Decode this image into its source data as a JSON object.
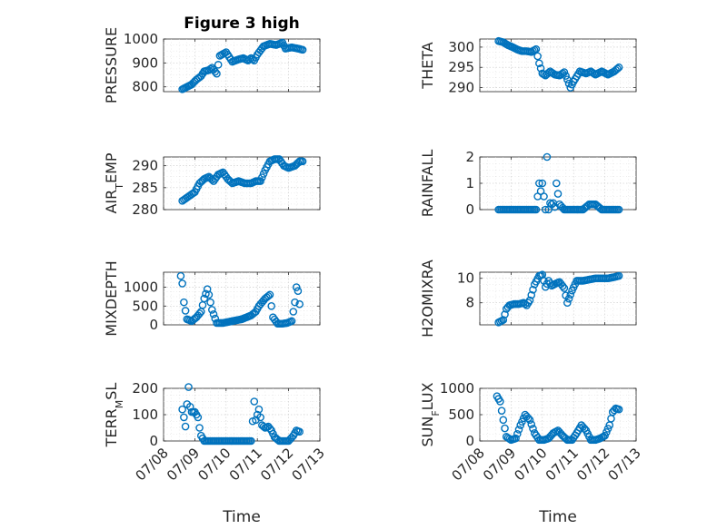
{
  "colors": {
    "series": "#0072bd",
    "axis": "#262626",
    "grid": "#c8c8c8"
  },
  "chart_data": [
    {
      "type": "scatter",
      "title": "Figure 3 high",
      "ylabel": "PRESSURE",
      "xlim": [
        "07/08",
        "07/13"
      ],
      "ylim": [
        780,
        1000
      ],
      "yticks": [
        800,
        900,
        1000
      ],
      "xticks": [],
      "grid": true,
      "markers": "open-circle",
      "series": [
        {
          "x": [
            8.6,
            8.9,
            9.05,
            9.2,
            9.3,
            9.45,
            9.55,
            9.7,
            9.8,
            10.0,
            10.2,
            10.4,
            10.55,
            10.7,
            10.8,
            10.9,
            11.0,
            11.2,
            11.4,
            11.6,
            11.8,
            11.9,
            12.1,
            12.3,
            12.45
          ],
          "values": [
            790,
            810,
            830,
            845,
            865,
            870,
            880,
            855,
            930,
            945,
            905,
            915,
            920,
            910,
            920,
            910,
            935,
            970,
            980,
            975,
            985,
            960,
            965,
            960,
            955
          ]
        }
      ]
    },
    {
      "type": "scatter",
      "title": "",
      "ylabel": "THETA",
      "xlim": [
        "07/08",
        "07/13"
      ],
      "ylim": [
        289,
        302
      ],
      "yticks": [
        290,
        295,
        300
      ],
      "xticks": [],
      "grid": true,
      "markers": "open-circle",
      "series": [
        {
          "x": [
            8.6,
            8.75,
            8.9,
            9.05,
            9.2,
            9.35,
            9.5,
            9.65,
            9.8,
            9.9,
            10.0,
            10.1,
            10.25,
            10.4,
            10.55,
            10.7,
            10.8,
            10.9,
            11.0,
            11.2,
            11.4,
            11.55,
            11.7,
            11.9,
            12.1,
            12.3,
            12.45
          ],
          "values": [
            301.5,
            301.2,
            300.5,
            300.0,
            299.4,
            299.0,
            299.0,
            298.8,
            299.5,
            296.0,
            293.5,
            293.0,
            294.0,
            293.2,
            293.0,
            293.8,
            292.0,
            290.0,
            291.5,
            294.0,
            293.5,
            294.0,
            293.2,
            294.0,
            293.2,
            294.0,
            295.0
          ]
        }
      ]
    },
    {
      "type": "scatter",
      "title": "",
      "ylabel": "AIR_TEMP",
      "xlim": [
        "07/08",
        "07/13"
      ],
      "ylim": [
        280,
        292
      ],
      "yticks": [
        280,
        285,
        290
      ],
      "xticks": [],
      "grid": true,
      "markers": "open-circle",
      "series": [
        {
          "x": [
            8.6,
            8.8,
            9.0,
            9.15,
            9.3,
            9.45,
            9.6,
            9.75,
            9.9,
            10.05,
            10.2,
            10.4,
            10.6,
            10.8,
            10.95,
            11.1,
            11.25,
            11.4,
            11.55,
            11.7,
            11.85,
            12.0,
            12.2,
            12.35,
            12.45
          ],
          "values": [
            282,
            283,
            284,
            286,
            287,
            287.5,
            286.5,
            288,
            288.5,
            287,
            286,
            286.5,
            286,
            286,
            286.5,
            286.5,
            289,
            291,
            291.5,
            291.5,
            290,
            289.5,
            290,
            291,
            291
          ]
        }
      ]
    },
    {
      "type": "scatter",
      "title": "",
      "ylabel": "RAINFALL",
      "xlim": [
        "07/08",
        "07/13"
      ],
      "ylim": [
        0,
        2
      ],
      "yticks": [
        0,
        1,
        2
      ],
      "xticks": [],
      "grid": true,
      "markers": "open-circle",
      "series": [
        {
          "x": [
            8.6,
            8.8,
            9.0,
            9.2,
            9.4,
            9.6,
            9.8,
            9.9,
            9.95,
            10.0,
            10.1,
            10.15,
            10.2,
            10.25,
            10.3,
            10.35,
            10.4,
            10.45,
            10.55,
            10.7,
            10.9,
            11.1,
            11.3,
            11.5,
            11.7,
            11.9,
            12.1,
            12.3,
            12.45
          ],
          "values": [
            0,
            0,
            0,
            0,
            0,
            0,
            0,
            1.0,
            0.7,
            1.0,
            0,
            2.0,
            0,
            0.25,
            0.2,
            0.25,
            0.1,
            1.0,
            0.2,
            0,
            0,
            0,
            0,
            0.2,
            0.2,
            0,
            0,
            0,
            0
          ]
        }
      ]
    },
    {
      "type": "scatter",
      "title": "",
      "ylabel": "MIXDEPTH",
      "xlim": [
        "07/08",
        "07/13"
      ],
      "ylim": [
        0,
        1400
      ],
      "yticks": [
        0,
        500,
        1000
      ],
      "xticks": [],
      "grid": true,
      "markers": "open-circle",
      "series": [
        {
          "x": [
            8.55,
            8.6,
            8.65,
            8.75,
            8.9,
            9.05,
            9.2,
            9.3,
            9.4,
            9.45,
            9.55,
            9.7,
            9.9,
            10.2,
            10.5,
            10.8,
            10.95,
            11.05,
            11.15,
            11.25,
            11.4,
            11.5,
            11.65,
            11.8,
            11.95,
            12.1,
            12.2,
            12.25,
            12.3,
            12.35
          ],
          "values": [
            1300,
            1100,
            600,
            150,
            100,
            200,
            350,
            700,
            950,
            800,
            400,
            50,
            50,
            100,
            150,
            250,
            350,
            500,
            600,
            700,
            800,
            200,
            30,
            30,
            50,
            100,
            600,
            1000,
            900,
            550
          ]
        }
      ]
    },
    {
      "type": "scatter",
      "title": "",
      "ylabel": "H2OMIXRA",
      "xlim": [
        "07/08",
        "07/13"
      ],
      "ylim": [
        6.2,
        10.5
      ],
      "yticks": [
        8,
        10
      ],
      "xticks": [],
      "grid": true,
      "markers": "open-circle",
      "series": [
        {
          "x": [
            8.6,
            8.75,
            8.85,
            8.95,
            9.1,
            9.25,
            9.4,
            9.5,
            9.6,
            9.75,
            9.9,
            10.0,
            10.1,
            10.2,
            10.3,
            10.45,
            10.55,
            10.7,
            10.8,
            10.95,
            11.1,
            11.3,
            11.5,
            11.7,
            11.9,
            12.1,
            12.3,
            12.45
          ],
          "values": [
            6.4,
            6.6,
            7.5,
            7.8,
            7.9,
            7.9,
            8.0,
            7.8,
            8.2,
            9.5,
            10.2,
            10.3,
            9.3,
            9.8,
            9.4,
            9.6,
            9.7,
            9.2,
            8.0,
            9.0,
            9.8,
            9.8,
            9.9,
            10.0,
            10.0,
            10.0,
            10.1,
            10.2
          ]
        }
      ]
    },
    {
      "type": "scatter",
      "title": "",
      "ylabel": "TERR_MSL",
      "xlim": [
        "07/08",
        "07/13"
      ],
      "ylim": [
        0,
        200
      ],
      "yticks": [
        0,
        100,
        200
      ],
      "xticks": [
        "07/08",
        "07/09",
        "07/10",
        "07/11",
        "07/12",
        "07/13"
      ],
      "xlabel": "Time",
      "grid": true,
      "markers": "open-circle",
      "series": [
        {
          "x": [
            8.6,
            8.65,
            8.7,
            8.75,
            8.8,
            8.85,
            8.9,
            9.0,
            9.1,
            9.15,
            9.2,
            9.3,
            9.5,
            9.7,
            9.9,
            10.1,
            10.3,
            10.5,
            10.7,
            10.8,
            10.9,
            10.95,
            11.05,
            11.15,
            11.25,
            11.35,
            11.45,
            11.55,
            11.7,
            11.85,
            12.0,
            12.15,
            12.25,
            12.35
          ],
          "values": [
            120,
            90,
            55,
            140,
            205,
            130,
            110,
            110,
            90,
            50,
            20,
            0,
            0,
            0,
            0,
            0,
            0,
            0,
            0,
            0,
            150,
            80,
            120,
            60,
            50,
            55,
            40,
            15,
            0,
            0,
            0,
            20,
            40,
            35
          ]
        }
      ]
    },
    {
      "type": "scatter",
      "title": "",
      "ylabel": "SUN_FLUX",
      "xlim": [
        "07/08",
        "07/13"
      ],
      "ylim": [
        0,
        1000
      ],
      "yticks": [
        0,
        500,
        1000
      ],
      "xticks": [
        "07/08",
        "07/09",
        "07/10",
        "07/11",
        "07/12",
        "07/13"
      ],
      "xlabel": "Time",
      "grid": true,
      "markers": "open-circle",
      "series": [
        {
          "x": [
            8.55,
            8.65,
            8.75,
            8.85,
            9.0,
            9.15,
            9.3,
            9.45,
            9.6,
            9.75,
            9.9,
            10.05,
            10.2,
            10.35,
            10.5,
            10.65,
            10.8,
            10.95,
            11.1,
            11.25,
            11.4,
            11.55,
            11.7,
            11.85,
            12.0,
            12.15,
            12.25,
            12.35,
            12.45
          ],
          "values": [
            850,
            750,
            400,
            80,
            20,
            50,
            300,
            500,
            400,
            150,
            20,
            20,
            50,
            150,
            200,
            100,
            20,
            20,
            150,
            300,
            200,
            20,
            20,
            50,
            100,
            300,
            550,
            620,
            600
          ]
        }
      ]
    }
  ]
}
